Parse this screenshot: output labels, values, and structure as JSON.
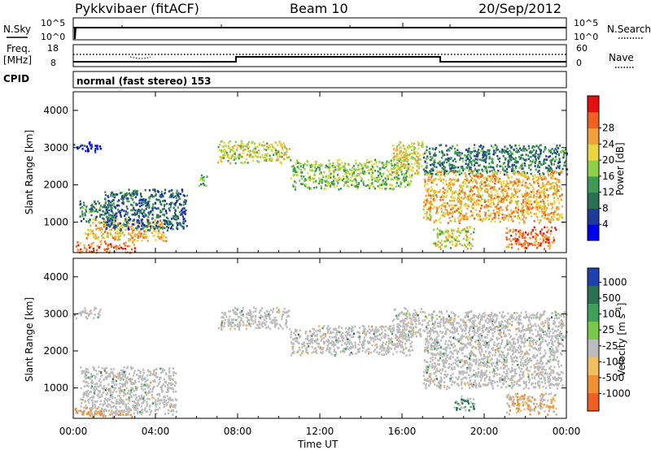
{
  "header": {
    "station": "Pykkvibaer (fitACF)",
    "beam": "Beam 10",
    "date": "20/Sep/2012"
  },
  "top_panels": {
    "nsky_label": "N.Sky",
    "nsky_ticks": [
      "10^5",
      "10^0"
    ],
    "nsearch_label": "N.Search",
    "nsearch_ticks": [
      "10^5",
      "10^0"
    ],
    "freq_label": "Freq.",
    "freq_unit": "[MHz]",
    "freq_ticks": [
      "18",
      "8"
    ],
    "nave_label": "Nave",
    "nave_ticks": [
      "60",
      "0"
    ],
    "cpid_label": "CPID",
    "cpid_text": "normal (fast stereo) 153"
  },
  "chart_data": [
    {
      "type": "heatmap",
      "name": "power",
      "xlabel": "",
      "ylabel": "Slant Range [km]",
      "xlim": [
        0,
        24
      ],
      "ylim": [
        180,
        4500
      ],
      "yticks": [
        1000,
        2000,
        3000,
        4000
      ],
      "colorbar": {
        "label": "Power [dB]",
        "range": [
          0,
          32
        ],
        "ticks": [
          "4",
          "8",
          "12",
          "16",
          "20",
          "24",
          "28"
        ],
        "colors": [
          "#0000ee",
          "#1e3a9a",
          "#2d6f55",
          "#3f9a55",
          "#8fd04a",
          "#e8d640",
          "#f2a13a",
          "#f06020",
          "#e41010"
        ]
      },
      "echo_regions": [
        {
          "t": [
            0.0,
            1.3
          ],
          "range": [
            2900,
            3200
          ],
          "level": 4
        },
        {
          "t": [
            0.2,
            2.0
          ],
          "range": [
            1000,
            1600
          ],
          "level": 10
        },
        {
          "t": [
            0.5,
            4.5
          ],
          "range": [
            500,
            1100
          ],
          "level": 22
        },
        {
          "t": [
            1.5,
            5.5
          ],
          "range": [
            800,
            1900
          ],
          "level": 8
        },
        {
          "t": [
            0.0,
            3.0
          ],
          "range": [
            200,
            500
          ],
          "level": 26
        },
        {
          "t": [
            6.0,
            6.5
          ],
          "range": [
            1900,
            2300
          ],
          "level": 14
        },
        {
          "t": [
            7.0,
            10.5
          ],
          "range": [
            2600,
            3200
          ],
          "level": 18
        },
        {
          "t": [
            10.5,
            16.5
          ],
          "range": [
            1900,
            2700
          ],
          "level": 16
        },
        {
          "t": [
            15.5,
            17.0
          ],
          "range": [
            2300,
            3200
          ],
          "level": 20
        },
        {
          "t": [
            17.0,
            24.0
          ],
          "range": [
            2300,
            3100
          ],
          "level": 10
        },
        {
          "t": [
            17.0,
            23.8
          ],
          "range": [
            1000,
            2400
          ],
          "level": 22
        },
        {
          "t": [
            21.0,
            23.5
          ],
          "range": [
            300,
            900
          ],
          "level": 26
        },
        {
          "t": [
            17.5,
            19.5
          ],
          "range": [
            300,
            900
          ],
          "level": 18
        }
      ]
    },
    {
      "type": "heatmap",
      "name": "velocity",
      "xlabel": "Time UT",
      "ylabel": "Slant Range [km]",
      "xlim": [
        0,
        24
      ],
      "ylim": [
        180,
        4500
      ],
      "xticks": [
        "00:00",
        "04:00",
        "08:00",
        "12:00",
        "16:00",
        "20:00",
        "00:00"
      ],
      "yticks": [
        1000,
        2000,
        3000,
        4000
      ],
      "colorbar": {
        "label": "Velocity [m s^-1]",
        "ticks": [
          "1000",
          "500",
          "100",
          "25",
          "-25",
          "-100",
          "-500",
          "-1000"
        ],
        "colors": [
          "#2040b0",
          "#2d6f55",
          "#3fa05a",
          "#7ac84a",
          "#bcbcbc",
          "#f2c060",
          "#f09030",
          "#f06020",
          "#e41010"
        ]
      },
      "echo_regions": [
        {
          "t": [
            0.0,
            1.3
          ],
          "range": [
            2900,
            3200
          ],
          "v": "ground"
        },
        {
          "t": [
            0.3,
            5.0
          ],
          "range": [
            300,
            1600
          ],
          "v": "ground"
        },
        {
          "t": [
            0.0,
            3.0
          ],
          "range": [
            200,
            500
          ],
          "v": -300
        },
        {
          "t": [
            7.0,
            10.5
          ],
          "range": [
            2600,
            3200
          ],
          "v": "ground"
        },
        {
          "t": [
            10.5,
            16.5
          ],
          "range": [
            1900,
            2700
          ],
          "v": "ground"
        },
        {
          "t": [
            15.5,
            17.0
          ],
          "range": [
            2300,
            3200
          ],
          "v": "ground"
        },
        {
          "t": [
            17.0,
            24.0
          ],
          "range": [
            2300,
            3100
          ],
          "v": "ground"
        },
        {
          "t": [
            17.0,
            23.8
          ],
          "range": [
            1000,
            2400
          ],
          "v": "ground"
        },
        {
          "t": [
            18.5,
            19.5
          ],
          "range": [
            400,
            800
          ],
          "v": 200
        },
        {
          "t": [
            21.0,
            23.5
          ],
          "range": [
            300,
            900
          ],
          "v": -200
        }
      ]
    }
  ]
}
